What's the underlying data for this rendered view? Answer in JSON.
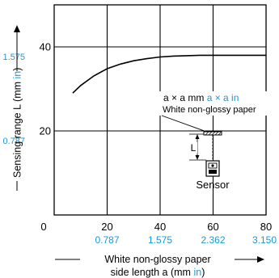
{
  "chart_data": {
    "type": "line",
    "x": [
      7,
      10,
      15,
      20,
      25,
      30,
      35,
      40,
      45,
      50,
      55,
      60,
      70,
      80
    ],
    "y": [
      29,
      30.8,
      33.1,
      34.8,
      35.9,
      36.7,
      37.2,
      37.6,
      37.8,
      37.9,
      38,
      38,
      38,
      38
    ],
    "xlim": [
      0,
      80
    ],
    "ylim": [
      0,
      50
    ],
    "grid": true,
    "line_color": "#000000",
    "accent_color": "#1a9ad6",
    "x_ticks": [
      {
        "value": 20,
        "label": "20",
        "alt": "0.787"
      },
      {
        "value": 40,
        "label": "40",
        "alt": "1.575"
      },
      {
        "value": 60,
        "label": "60",
        "alt": "2.362"
      },
      {
        "value": 80,
        "label": "80",
        "alt": "3.150"
      }
    ],
    "y_ticks": [
      {
        "value": 20,
        "label": "20",
        "alt": "0.787"
      },
      {
        "value": 40,
        "label": "40",
        "alt": "1.575"
      }
    ],
    "origin_label": "0",
    "xlabel": {
      "line1": "White non-glossy paper",
      "line2_main": "side length a (mm ",
      "line2_unit": "in",
      "line2_end": ")"
    },
    "ylabel": {
      "main": "Sensing range L (mm ",
      "unit": "in",
      "end": ")"
    },
    "inset": {
      "size_mm": "a × a mm",
      "size_in": "a × a in",
      "target": "White non-glossy paper",
      "distance_label": "L",
      "sensor_label": "Sensor"
    }
  }
}
